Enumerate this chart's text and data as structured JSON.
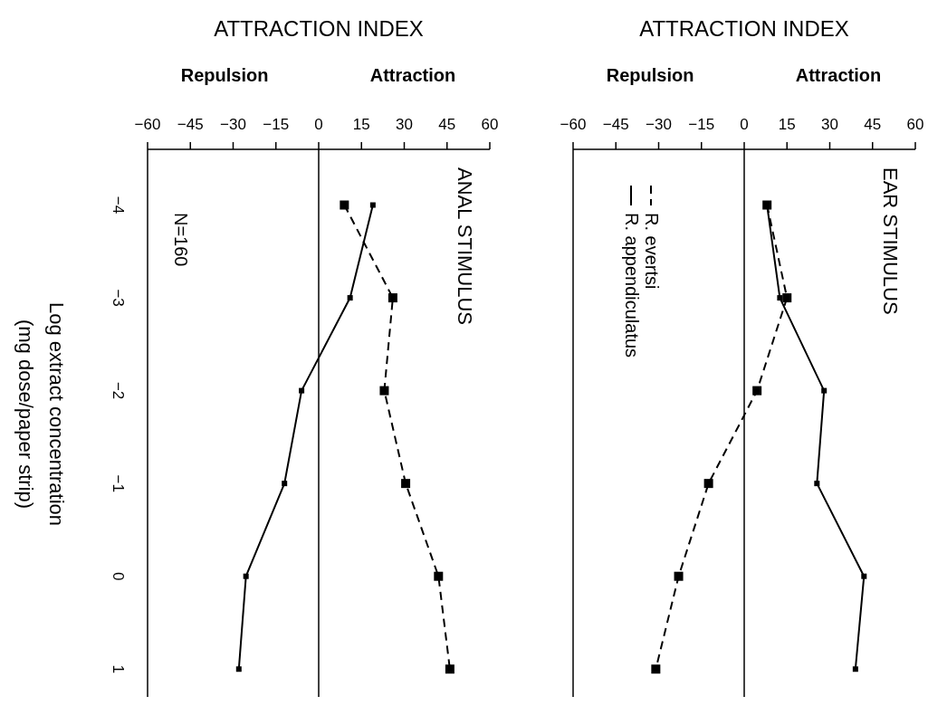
{
  "chart_data": [
    {
      "type": "line",
      "title": "ANAL STIMULUS",
      "xlabel": "ATTRACTION INDEX",
      "ylabel": "Log extract concentration\n(mg dose/paper strip)",
      "annotations": [
        "Repulsion",
        "Attraction",
        "N=160"
      ],
      "xlim": [
        -60,
        60
      ],
      "xticks": [
        -60,
        -45,
        -30,
        -15,
        0,
        15,
        30,
        45,
        60
      ],
      "ylim": [
        1.3,
        -4.6
      ],
      "yticks": [
        -4,
        -3,
        -2,
        -1,
        0,
        1
      ],
      "ref_lines": [
        {
          "axis": "x",
          "value": 0,
          "color": "#000000"
        }
      ],
      "marker": "square",
      "grid": false,
      "legend": false,
      "series": [
        {
          "color": "#000000",
          "line_style": "dashed",
          "x": [
            9,
            26,
            23,
            30.5,
            42,
            46
          ],
          "values": [
            -4,
            -3,
            -2,
            -1,
            0,
            1
          ]
        },
        {
          "color": "#000000",
          "line_style": "solid",
          "x": [
            19,
            11,
            -6,
            -12,
            -25.5,
            -28
          ],
          "values": [
            -4,
            -3,
            -2,
            -1,
            0,
            1
          ]
        }
      ]
    },
    {
      "type": "line",
      "title": "EAR STIMULUS",
      "xlabel": "ATTRACTION INDEX",
      "annotations": [
        "Repulsion",
        "Attraction"
      ],
      "xlim": [
        -60,
        60
      ],
      "xticks": [
        -60,
        -45,
        -30,
        -15,
        0,
        15,
        30,
        45,
        60
      ],
      "ylim": [
        1.3,
        -4.6
      ],
      "tick_labels": "x",
      "ref_lines": [
        {
          "axis": "x",
          "value": 0,
          "color": "#000000"
        }
      ],
      "marker": "square",
      "grid": false,
      "legend": "top left",
      "series": [
        {
          "name": "R. evertsi",
          "color": "#000000",
          "line_style": "dashed",
          "x": [
            8,
            15,
            4.5,
            -12.5,
            -23,
            -31
          ],
          "values": [
            -4,
            -3,
            -2,
            -1,
            0,
            1
          ]
        },
        {
          "name": "R. appendiculatus",
          "color": "#000000",
          "line_style": "solid",
          "x": [
            8,
            12.5,
            28,
            25.5,
            42,
            39
          ],
          "values": [
            -4,
            -3,
            -2,
            -1,
            0,
            1
          ]
        }
      ]
    }
  ]
}
